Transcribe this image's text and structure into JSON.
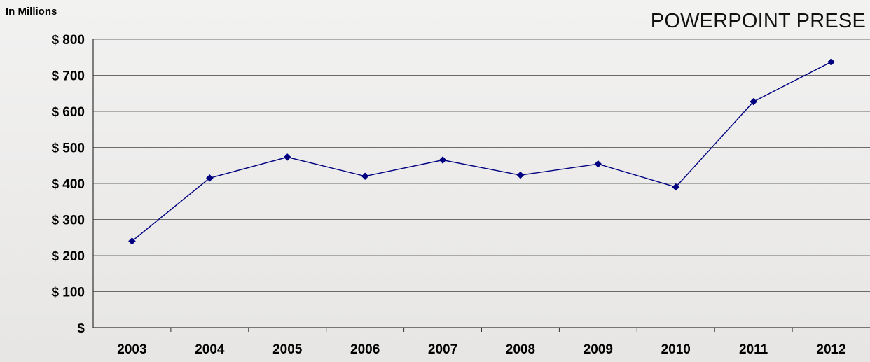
{
  "unit_label": "In Millions",
  "header_text": "POWERPOINT PRESE",
  "chart_data": {
    "type": "line",
    "title": "",
    "xlabel": "",
    "ylabel": "In Millions",
    "categories": [
      "2003",
      "2004",
      "2005",
      "2006",
      "2007",
      "2008",
      "2009",
      "2010",
      "2011",
      "2012"
    ],
    "series": [
      {
        "values": [
          240,
          415,
          473,
          420,
          465,
          423,
          454,
          390,
          627,
          737
        ]
      }
    ],
    "y_tick_labels": [
      "$",
      "$ 100",
      "$ 200",
      "$ 300",
      "$ 400",
      "$ 500",
      "$ 600",
      "$ 700",
      "$ 800"
    ],
    "y_tick_values": [
      0,
      100,
      200,
      300,
      400,
      500,
      600,
      700,
      800
    ],
    "ylim": [
      0,
      800
    ],
    "grid": true,
    "legend": "none",
    "colors": {
      "line": "#000080",
      "marker": "#000080",
      "grid": "#6a6a6a"
    }
  }
}
